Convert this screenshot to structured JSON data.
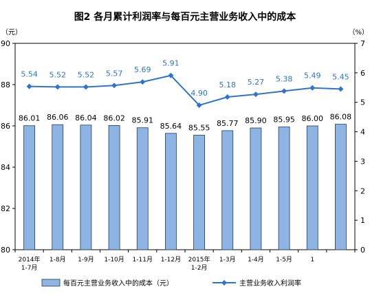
{
  "chart_data": {
    "type": "bar",
    "title": "图2 各月累计利润率与每百元主营业务收入中的成本",
    "left_unit": "（元）",
    "right_unit": "（%）",
    "categories": [
      [
        "2014年",
        "1-7月"
      ],
      [
        "1-8月"
      ],
      [
        "1-9月"
      ],
      [
        "1-10月"
      ],
      [
        "1-11月"
      ],
      [
        "1-12月"
      ],
      [
        "2015年",
        "1-2月"
      ],
      [
        "1-3月"
      ],
      [
        "1-4月"
      ],
      [
        "1-5月"
      ],
      [
        "1"
      ],
      [
        ""
      ]
    ],
    "ylim_left": [
      80,
      90
    ],
    "ylim_right": [
      0,
      7
    ],
    "left_ticks": [
      80,
      82,
      84,
      86,
      88,
      90
    ],
    "right_ticks": [
      0,
      1,
      2,
      3,
      4,
      5,
      6,
      7
    ],
    "grid": false,
    "legend_position": "bottom",
    "series": [
      {
        "name": "每百元主营业务收入中的成本（元）",
        "kind": "bar",
        "axis": "left",
        "color": "#8EB4E3",
        "edge_color": "#1F3B5E",
        "values": [
          86.01,
          86.06,
          86.04,
          86.02,
          85.91,
          85.64,
          85.55,
          85.77,
          85.9,
          85.95,
          86.0,
          86.08
        ],
        "labels": [
          "86.01",
          "86.06",
          "86.04",
          "86.02",
          "85.91",
          "85.64",
          "85.55",
          "85.77",
          "85.90",
          "85.95",
          "86.00",
          "86.08"
        ]
      },
      {
        "name": "主营业务收入利润率",
        "kind": "line",
        "axis": "right",
        "color": "#2F74C9",
        "label_color": "#2F74C9",
        "values": [
          5.54,
          5.52,
          5.52,
          5.57,
          5.69,
          5.91,
          4.9,
          5.18,
          5.27,
          5.38,
          5.49,
          5.45
        ],
        "labels": [
          "5.54",
          "5.52",
          "5.52",
          "5.57",
          "5.69",
          "5.91",
          "4.90",
          "5.18",
          "5.27",
          "5.38",
          "5.49",
          "5.45"
        ]
      }
    ]
  }
}
